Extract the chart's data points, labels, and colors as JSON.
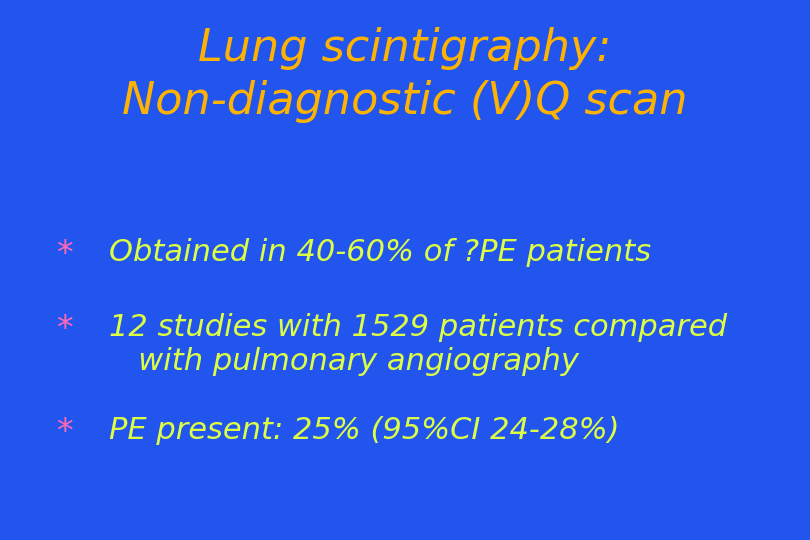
{
  "background_color": "#2255EE",
  "title_line1": "Lung scintigraphy:",
  "title_line2": "Non-diagnostic (V)Q scan",
  "title_color": "#FFB300",
  "title_fontsize": 32,
  "bullet_color": "#FF69B4",
  "bullet_text_color": "#DDFF44",
  "bullet_fontsize": 22,
  "bullet_star_fontsize": 24,
  "bullets": [
    {
      "text": "Obtained in 40-60% of ?PE patients"
    },
    {
      "text": "12 studies with 1529 patients compared\n   with pulmonary angiography"
    },
    {
      "text": "PE present: 25% (95%CI 24-28%)"
    }
  ],
  "fig_width": 8.1,
  "fig_height": 5.4,
  "dpi": 100
}
